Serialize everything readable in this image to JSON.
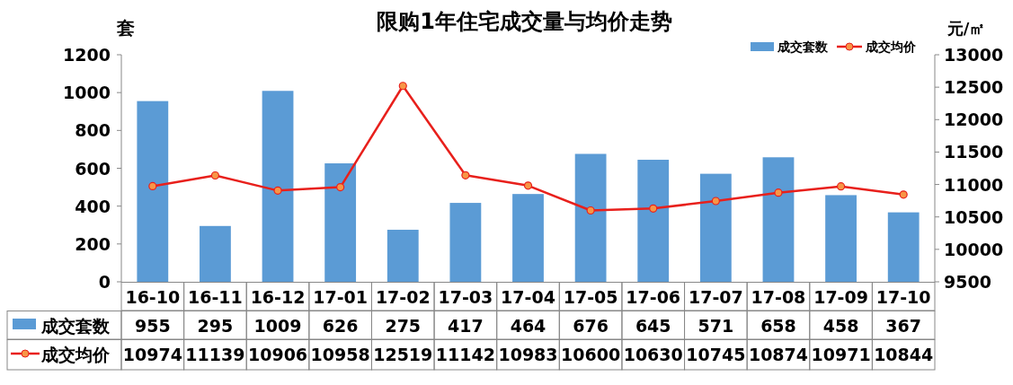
{
  "chart_data": {
    "type": "bar",
    "title": "限购1年住宅成交量与均价走势",
    "ylabel": "套",
    "y2label": "元/㎡",
    "categories": [
      "16-10",
      "16-11",
      "16-12",
      "17-01",
      "17-02",
      "17-03",
      "17-04",
      "17-05",
      "17-06",
      "17-07",
      "17-08",
      "17-09",
      "17-10"
    ],
    "series": [
      {
        "name": "成交套数",
        "color": "#5b9bd5",
        "values": [
          955,
          295,
          1009,
          626,
          275,
          417,
          464,
          676,
          645,
          571,
          658,
          458,
          367
        ]
      },
      {
        "name": "成交均价",
        "type": "line",
        "axis": "y2",
        "color": "#e8201c",
        "marker": "circle",
        "values": [
          10974,
          11139,
          10906,
          10958,
          12519,
          11142,
          10983,
          10600,
          10630,
          10745,
          10874,
          10971,
          10844
        ]
      }
    ],
    "ylim": [
      0,
      1200
    ],
    "yticks": [
      0,
      200,
      400,
      600,
      800,
      1000,
      1200
    ],
    "y2lim": [
      9500,
      13000
    ],
    "y2ticks": [
      9500,
      10000,
      10500,
      11000,
      11500,
      12000,
      12500,
      13000
    ],
    "legend": "top right",
    "data_labels": true,
    "grid": false
  }
}
